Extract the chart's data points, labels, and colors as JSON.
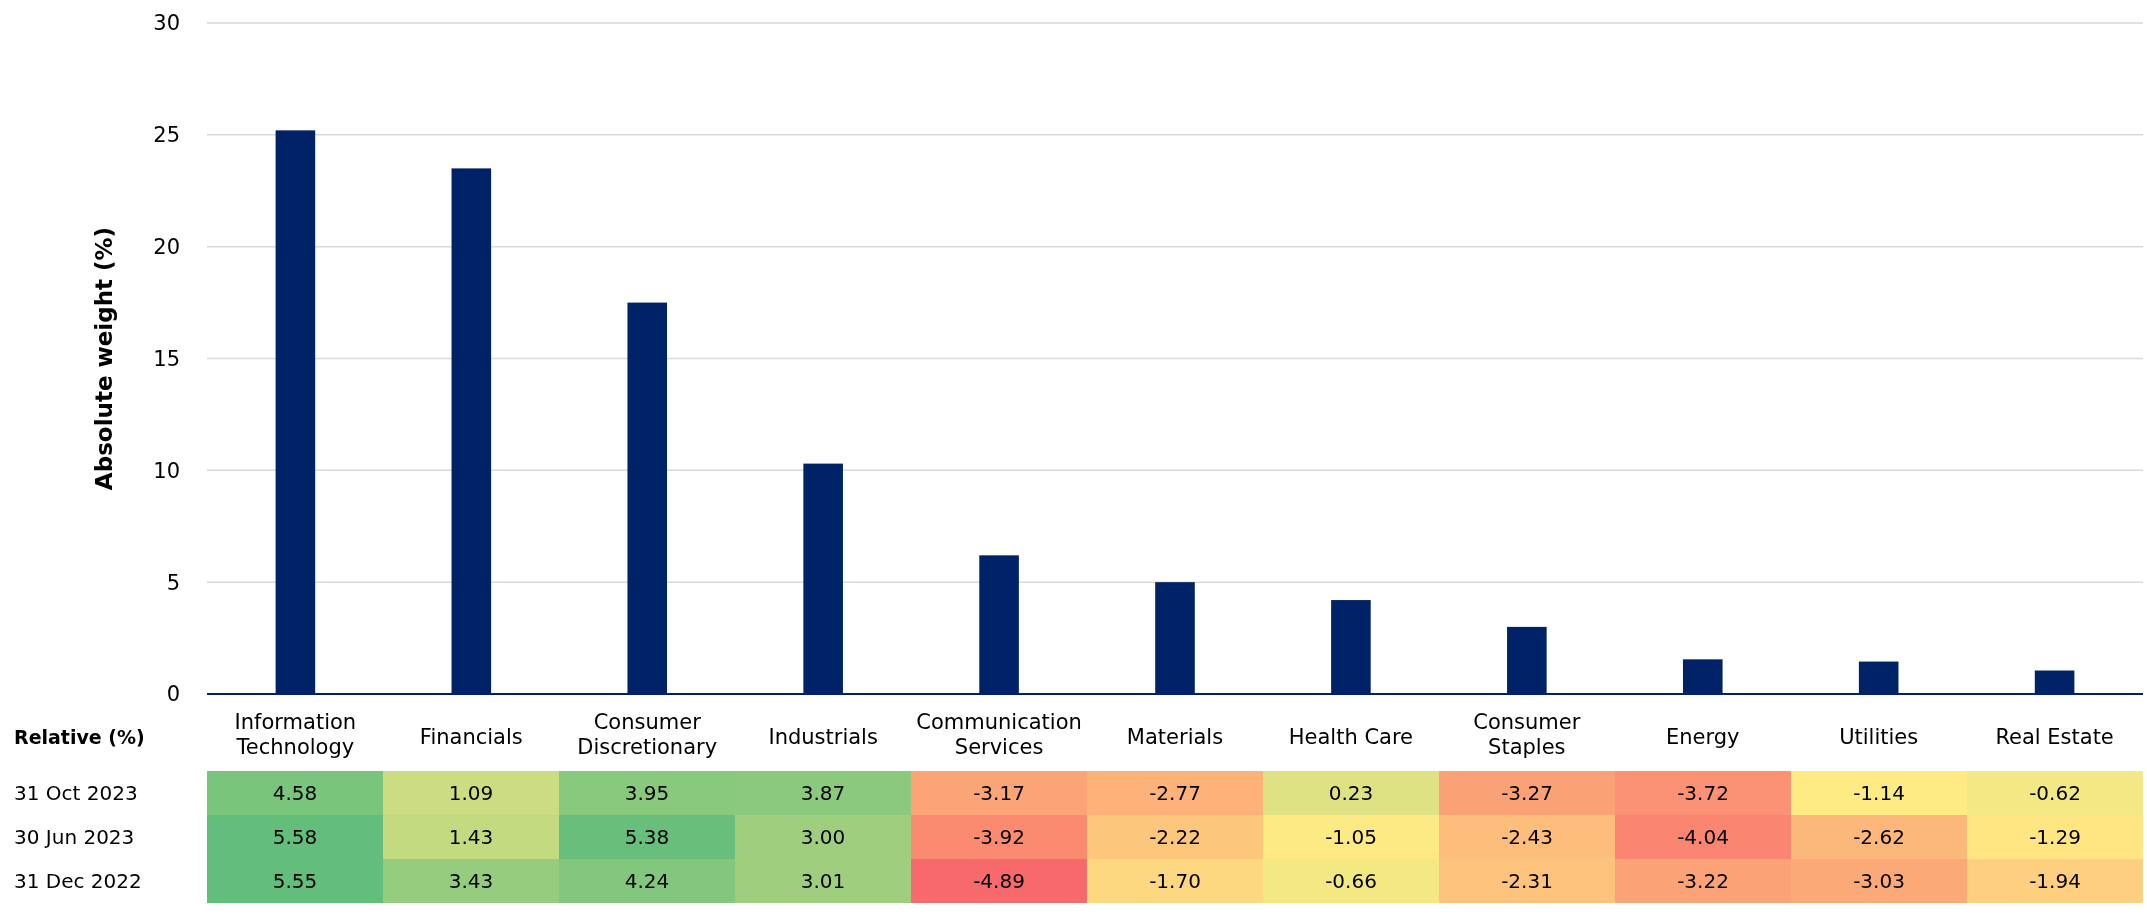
{
  "chart_data": [
    {
      "type": "bar",
      "ylabel": "Absolute weight (%)",
      "categories": [
        "Information Technology",
        "Financials",
        "Consumer Discretionary",
        "Industrials",
        "Communication Services",
        "Materials",
        "Health Care",
        "Consumer Staples",
        "Energy",
        "Utilities",
        "Real Estate"
      ],
      "values": [
        25.2,
        23.5,
        17.5,
        10.3,
        6.2,
        5.0,
        4.2,
        3.0,
        1.55,
        1.45,
        1.05
      ],
      "color": "#002266",
      "ylim": [
        0,
        30
      ],
      "yticks": [
        0,
        5,
        10,
        15,
        20,
        25,
        30
      ],
      "grid": "y"
    },
    {
      "type": "heatmap",
      "title": "Relative (%)",
      "categories": [
        null,
        null,
        null,
        null,
        null,
        null,
        null,
        null,
        null,
        null,
        null
      ],
      "y_categories": [
        "31 Oct 2023",
        "30 Jun 2023",
        "31 Dec 2022"
      ],
      "tick_labels": "y",
      "cells": [
        [
          4.58,
          1.09,
          3.95,
          3.87,
          -3.17,
          -2.77,
          0.23,
          -3.27,
          -3.72,
          -1.14,
          -0.62
        ],
        [
          5.58,
          1.43,
          5.38,
          3.0,
          -3.92,
          -2.22,
          -1.05,
          -2.43,
          -4.04,
          -2.62,
          -1.29
        ],
        [
          5.55,
          3.43,
          4.24,
          3.01,
          -4.89,
          -1.7,
          -0.66,
          -2.31,
          -3.22,
          -3.03,
          -1.94
        ]
      ],
      "cell_labels": [
        [
          "4.58",
          "1.09",
          "3.95",
          "3.87",
          "-3.17",
          "-2.77",
          "0.23",
          "-3.27",
          "-3.72",
          "-1.14",
          "-0.62"
        ],
        [
          "5.58",
          "1.43",
          "5.38",
          "3.00",
          "-3.92",
          "-2.22",
          "-1.05",
          "-2.43",
          "-4.04",
          "-2.62",
          "-1.29"
        ],
        [
          "5.55",
          "3.43",
          "4.24",
          "3.01",
          "-4.89",
          "-1.70",
          "-0.66",
          "-2.31",
          "-3.22",
          "-3.03",
          "-1.94"
        ]
      ]
    }
  ]
}
